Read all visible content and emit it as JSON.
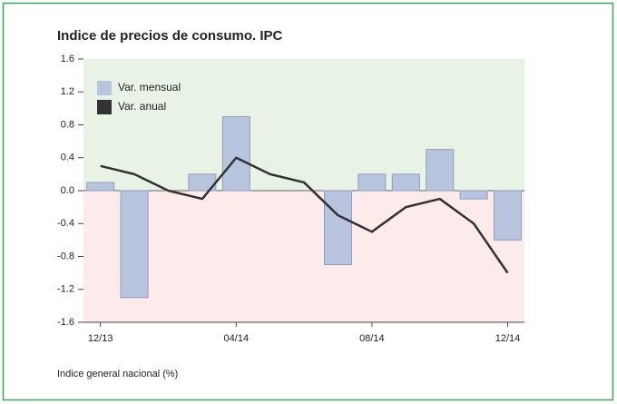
{
  "chart_data": {
    "type": "bar_line",
    "title": "Indice de precios de consumo. IPC",
    "footnote": "Indice general nacional (%)",
    "categories": [
      "12/13",
      null,
      null,
      null,
      "04/14",
      null,
      null,
      null,
      "08/14",
      null,
      null,
      null,
      "12/14"
    ],
    "series": [
      {
        "name": "Var. mensual",
        "type": "bar",
        "color": "#b9c5de",
        "values": [
          0.1,
          -1.3,
          0.0,
          0.2,
          0.9,
          0.0,
          0.0,
          -0.9,
          0.2,
          0.2,
          0.5,
          -0.1,
          -0.6
        ]
      },
      {
        "name": "Var. anual",
        "type": "line",
        "color": "#333333",
        "values": [
          0.3,
          0.2,
          0.0,
          -0.1,
          0.4,
          0.2,
          0.1,
          -0.3,
          -0.5,
          -0.2,
          -0.1,
          -0.4,
          -1.0
        ]
      }
    ],
    "ylim": [
      -1.6,
      1.6
    ],
    "yticks": [
      -1.6,
      -1.2,
      -0.8,
      -0.4,
      {
        "value": 0,
        "label": "0.0"
      },
      0.4,
      0.8,
      1.2,
      1.6
    ],
    "legend": "upper-left",
    "positive_bg": "#e8f3e5",
    "negative_bg": "#fdebeb"
  }
}
